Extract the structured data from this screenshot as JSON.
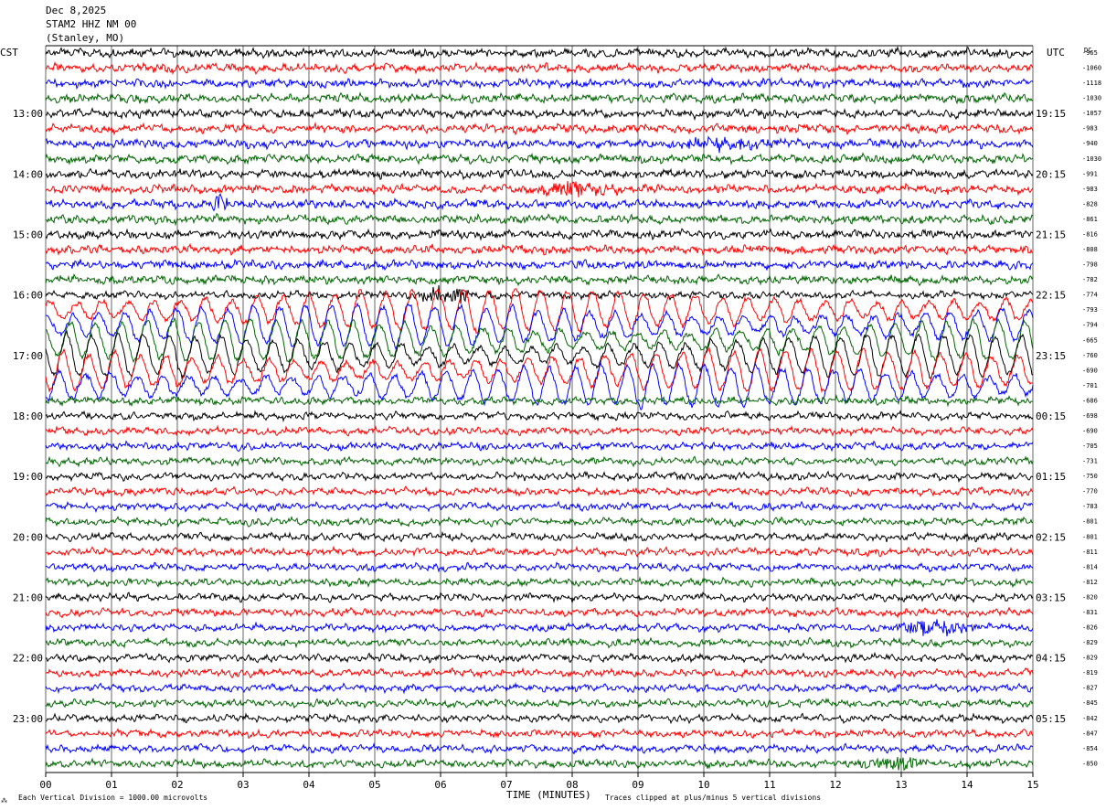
{
  "header": {
    "date": "Dec 8,2025",
    "station": "STAM2 HHZ NM 00",
    "location": "(Stanley, MO)"
  },
  "left_axis_label": "CST",
  "right_axis_label": "UTC",
  "dc_label": "DC",
  "footer": {
    "left_mark": "⁂",
    "scale_note": "Each Vertical Division = 1000.00 microvolts",
    "xlabel": "TIME (MINUTES)",
    "clip_note": "Traces clipped at plus/minus 5 vertical divisions"
  },
  "colors": {
    "trace_cycle": [
      "#000000",
      "#ff0000",
      "#0000ff",
      "#006400"
    ],
    "grid": "#000000",
    "background": "#ffffff"
  },
  "chart_data": {
    "type": "line",
    "subtype": "helicorder",
    "x_range": [
      0,
      15
    ],
    "xticks": [
      "00",
      "01",
      "02",
      "03",
      "04",
      "05",
      "06",
      "07",
      "08",
      "09",
      "10",
      "11",
      "12",
      "13",
      "14",
      "15"
    ],
    "minutes_per_line": 15,
    "lines_per_hour": 4,
    "left_hour_labels": [
      "13:00",
      "14:00",
      "15:00",
      "16:00",
      "17:00",
      "18:00",
      "19:00",
      "20:00",
      "21:00",
      "22:00",
      "23:00"
    ],
    "right_hour_labels": [
      "19:15",
      "20:15",
      "21:15",
      "22:15",
      "23:15",
      "00:15",
      "01:15",
      "02:15",
      "03:15",
      "04:15",
      "05:15"
    ],
    "left_label_first_line": 4,
    "dc_offsets": [
      "-965",
      "-1060",
      "-1118",
      "-1030",
      "-1057",
      "-983",
      "-940",
      "-1030",
      "-991",
      "-983",
      "-828",
      "-861",
      "-816",
      "-808",
      "-798",
      "-782",
      "-774",
      "-793",
      "-794",
      "-665",
      "-760",
      "-690",
      "-701",
      "-686",
      "-698",
      "-690",
      "-705",
      "-731",
      "-750",
      "-770",
      "-783",
      "-801",
      "-801",
      "-811",
      "-814",
      "-812",
      "-820",
      "-831",
      "-826",
      "-829",
      "-829",
      "-819",
      "-827",
      "-845",
      "-842",
      "-847",
      "-854",
      "-850"
    ],
    "events": [
      {
        "line": 10,
        "start_min": 2.5,
        "end_min": 2.8,
        "amplitude": 2.5,
        "label": "blue burst"
      },
      {
        "line": 9,
        "start_min": 7.3,
        "end_min": 8.8,
        "amplitude": 1.8,
        "label": "red burst"
      },
      {
        "line": 16,
        "start_min": 5.6,
        "end_min": 6.5,
        "amplitude": 2.5,
        "label": "black burst"
      },
      {
        "line": 38,
        "start_min": 12.7,
        "end_min": 14.3,
        "amplitude": 1.8,
        "label": "blue burst"
      },
      {
        "line": 47,
        "start_min": 12.2,
        "end_min": 13.5,
        "amplitude": 1.8,
        "label": "green burst"
      },
      {
        "line": 6,
        "start_min": 9.4,
        "end_min": 11.5,
        "amplitude": 1.4,
        "label": "blue wavy"
      }
    ],
    "long_period_lines": [
      17,
      18,
      19,
      20,
      21,
      22
    ]
  }
}
